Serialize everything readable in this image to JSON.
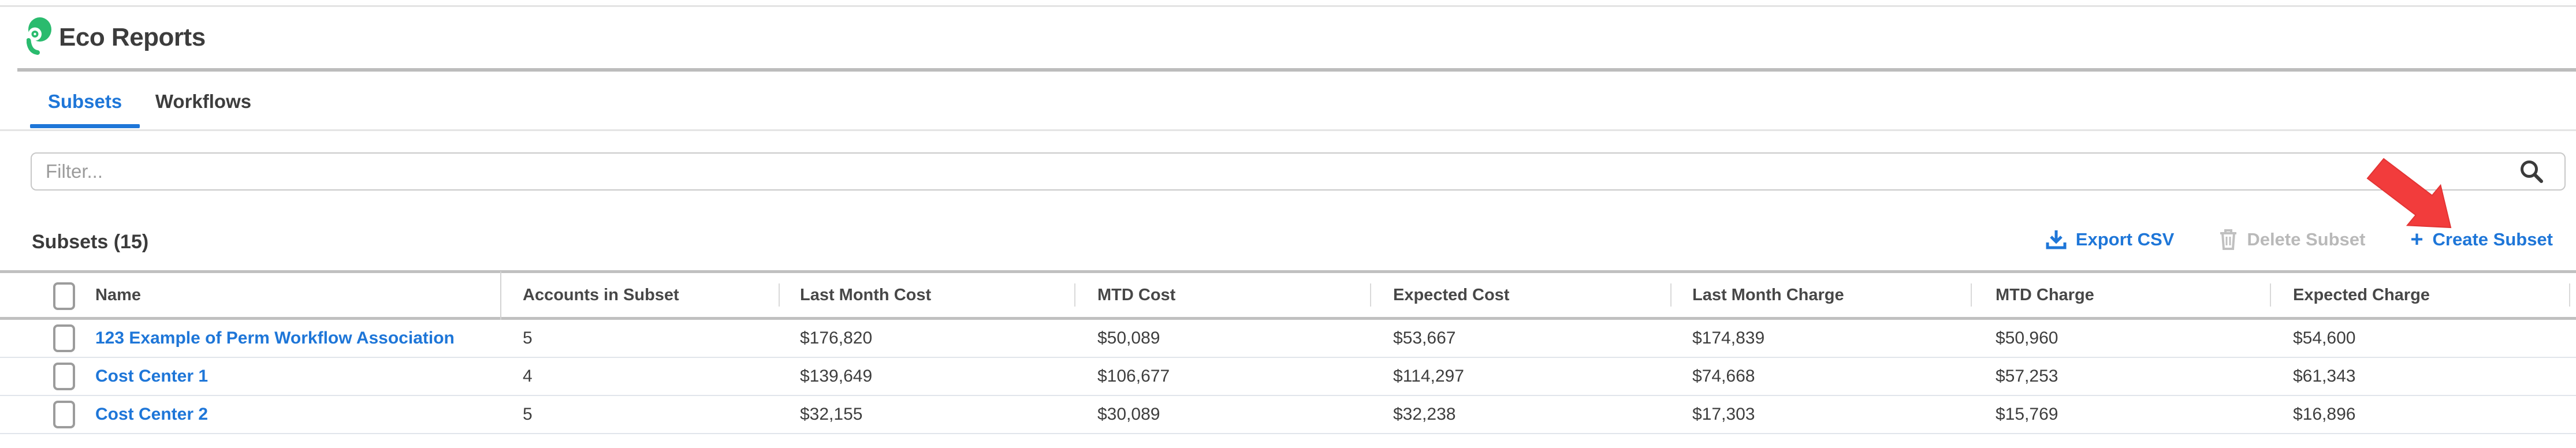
{
  "header": {
    "title": "Eco Reports"
  },
  "tabs": [
    {
      "label": "Subsets",
      "active": true
    },
    {
      "label": "Workflows",
      "active": false
    }
  ],
  "filter": {
    "placeholder": "Filter..."
  },
  "toolbar": {
    "heading": "Subsets (15)",
    "export_label": "Export CSV",
    "delete_label": "Delete Subset",
    "create_plus": "+",
    "create_label": "Create Subset"
  },
  "annotation": {
    "arrow_color": "#f23c3c"
  },
  "colors": {
    "accent_blue": "#1e76d8",
    "logo_green": "#2abb6e",
    "disabled_gray": "#b9b9b9"
  },
  "table": {
    "columns": [
      "Name",
      "Accounts in Subset",
      "Last Month Cost",
      "MTD Cost",
      "Expected Cost",
      "Last Month Charge",
      "MTD Charge",
      "Expected Charge"
    ],
    "rows": [
      [
        "123 Example of Perm Workflow Association",
        "5",
        "$176,820",
        "$50,089",
        "$53,667",
        "$174,839",
        "$50,960",
        "$54,600"
      ],
      [
        "Cost Center 1",
        "4",
        "$139,649",
        "$106,677",
        "$114,297",
        "$74,668",
        "$57,253",
        "$61,343"
      ],
      [
        "Cost Center 2",
        "5",
        "$32,155",
        "$30,089",
        "$32,238",
        "$17,303",
        "$15,769",
        "$16,896"
      ]
    ]
  }
}
